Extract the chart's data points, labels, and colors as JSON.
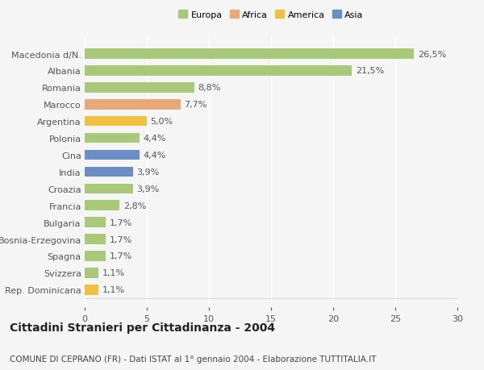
{
  "categories": [
    "Rep. Dominicana",
    "Svizzera",
    "Spagna",
    "Bosnia-Erzegovina",
    "Bulgaria",
    "Francia",
    "Croazia",
    "India",
    "Cina",
    "Polonia",
    "Argentina",
    "Marocco",
    "Romania",
    "Albania",
    "Macedonia d/N."
  ],
  "values": [
    1.1,
    1.1,
    1.7,
    1.7,
    1.7,
    2.8,
    3.9,
    3.9,
    4.4,
    4.4,
    5.0,
    7.7,
    8.8,
    21.5,
    26.5
  ],
  "labels": [
    "1,1%",
    "1,1%",
    "1,7%",
    "1,7%",
    "1,7%",
    "2,8%",
    "3,9%",
    "3,9%",
    "4,4%",
    "4,4%",
    "5,0%",
    "7,7%",
    "8,8%",
    "21,5%",
    "26,5%"
  ],
  "colors": [
    "#f0c040",
    "#aac87a",
    "#aac87a",
    "#aac87a",
    "#aac87a",
    "#aac87a",
    "#aac87a",
    "#6b8ec4",
    "#6b8ec4",
    "#aac87a",
    "#f0c040",
    "#e8a878",
    "#aac87a",
    "#aac87a",
    "#aac87a"
  ],
  "legend_labels": [
    "Europa",
    "Africa",
    "America",
    "Asia"
  ],
  "legend_colors": [
    "#aac87a",
    "#e8a878",
    "#f0c040",
    "#6b8ec4"
  ],
  "xlim": [
    0,
    30
  ],
  "xticks": [
    0,
    5,
    10,
    15,
    20,
    25,
    30
  ],
  "title": "Cittadini Stranieri per Cittadinanza - 2004",
  "subtitle": "COMUNE DI CEPRANO (FR) - Dati ISTAT al 1° gennaio 2004 - Elaborazione TUTTITALIA.IT",
  "bg_color": "#f5f5f5",
  "bar_height": 0.6,
  "grid_color": "#ffffff",
  "label_fontsize": 8,
  "title_fontsize": 10,
  "subtitle_fontsize": 7.5
}
